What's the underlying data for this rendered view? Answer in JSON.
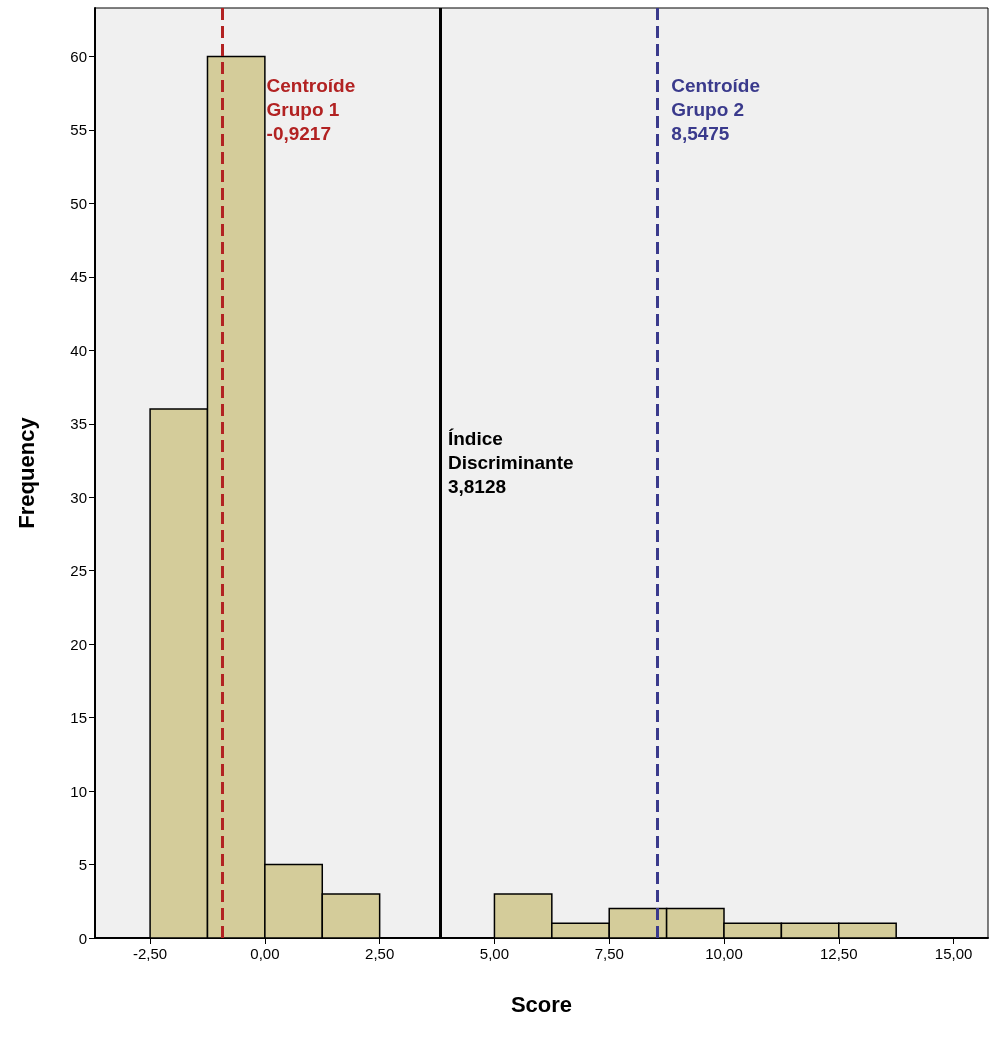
{
  "chart_data": {
    "type": "histogram",
    "xlabel": "Score",
    "ylabel": "Frequency",
    "bins": [
      -2.5,
      -1.25,
      0,
      1.25,
      2.5,
      3.75,
      5,
      6.25,
      7.5,
      8.75,
      10,
      11.25,
      12.5,
      13.75
    ],
    "values": [
      36,
      60,
      5,
      3,
      0,
      0,
      3,
      1,
      2,
      2,
      1,
      1,
      1
    ],
    "color": "#d4cc9a",
    "xlim": [
      -3.7,
      15.75
    ],
    "xticks": [
      {
        "value": -2.5,
        "label": "-2,50"
      },
      {
        "value": 0,
        "label": "0,00"
      },
      {
        "value": 2.5,
        "label": "2,50"
      },
      {
        "value": 5,
        "label": "5,00"
      },
      {
        "value": 7.5,
        "label": "7,50"
      },
      {
        "value": 10,
        "label": "10,00"
      },
      {
        "value": 12.5,
        "label": "12,50"
      },
      {
        "value": 15,
        "label": "15,00"
      }
    ],
    "ylim": [
      0,
      63.3
    ],
    "yticks": [
      0,
      5,
      10,
      15,
      20,
      25,
      30,
      35,
      40,
      45,
      50,
      55,
      60
    ],
    "grid": false,
    "ref_lines": [
      {
        "axis": "x",
        "value": -0.9217,
        "label": "Centroíde\nGrupo 1\n-0,9217",
        "color": "#b22222",
        "line_style": "dashed"
      },
      {
        "axis": "x",
        "value": 3.8128,
        "label": "Índice\nDiscriminante\n3,8128",
        "color": "#000000",
        "line_style": "solid"
      },
      {
        "axis": "x",
        "value": 8.5475,
        "label": "Centroíde\nGrupo 2\n8,5475",
        "color": "#3a3a8c",
        "line_style": "dashed"
      }
    ]
  }
}
